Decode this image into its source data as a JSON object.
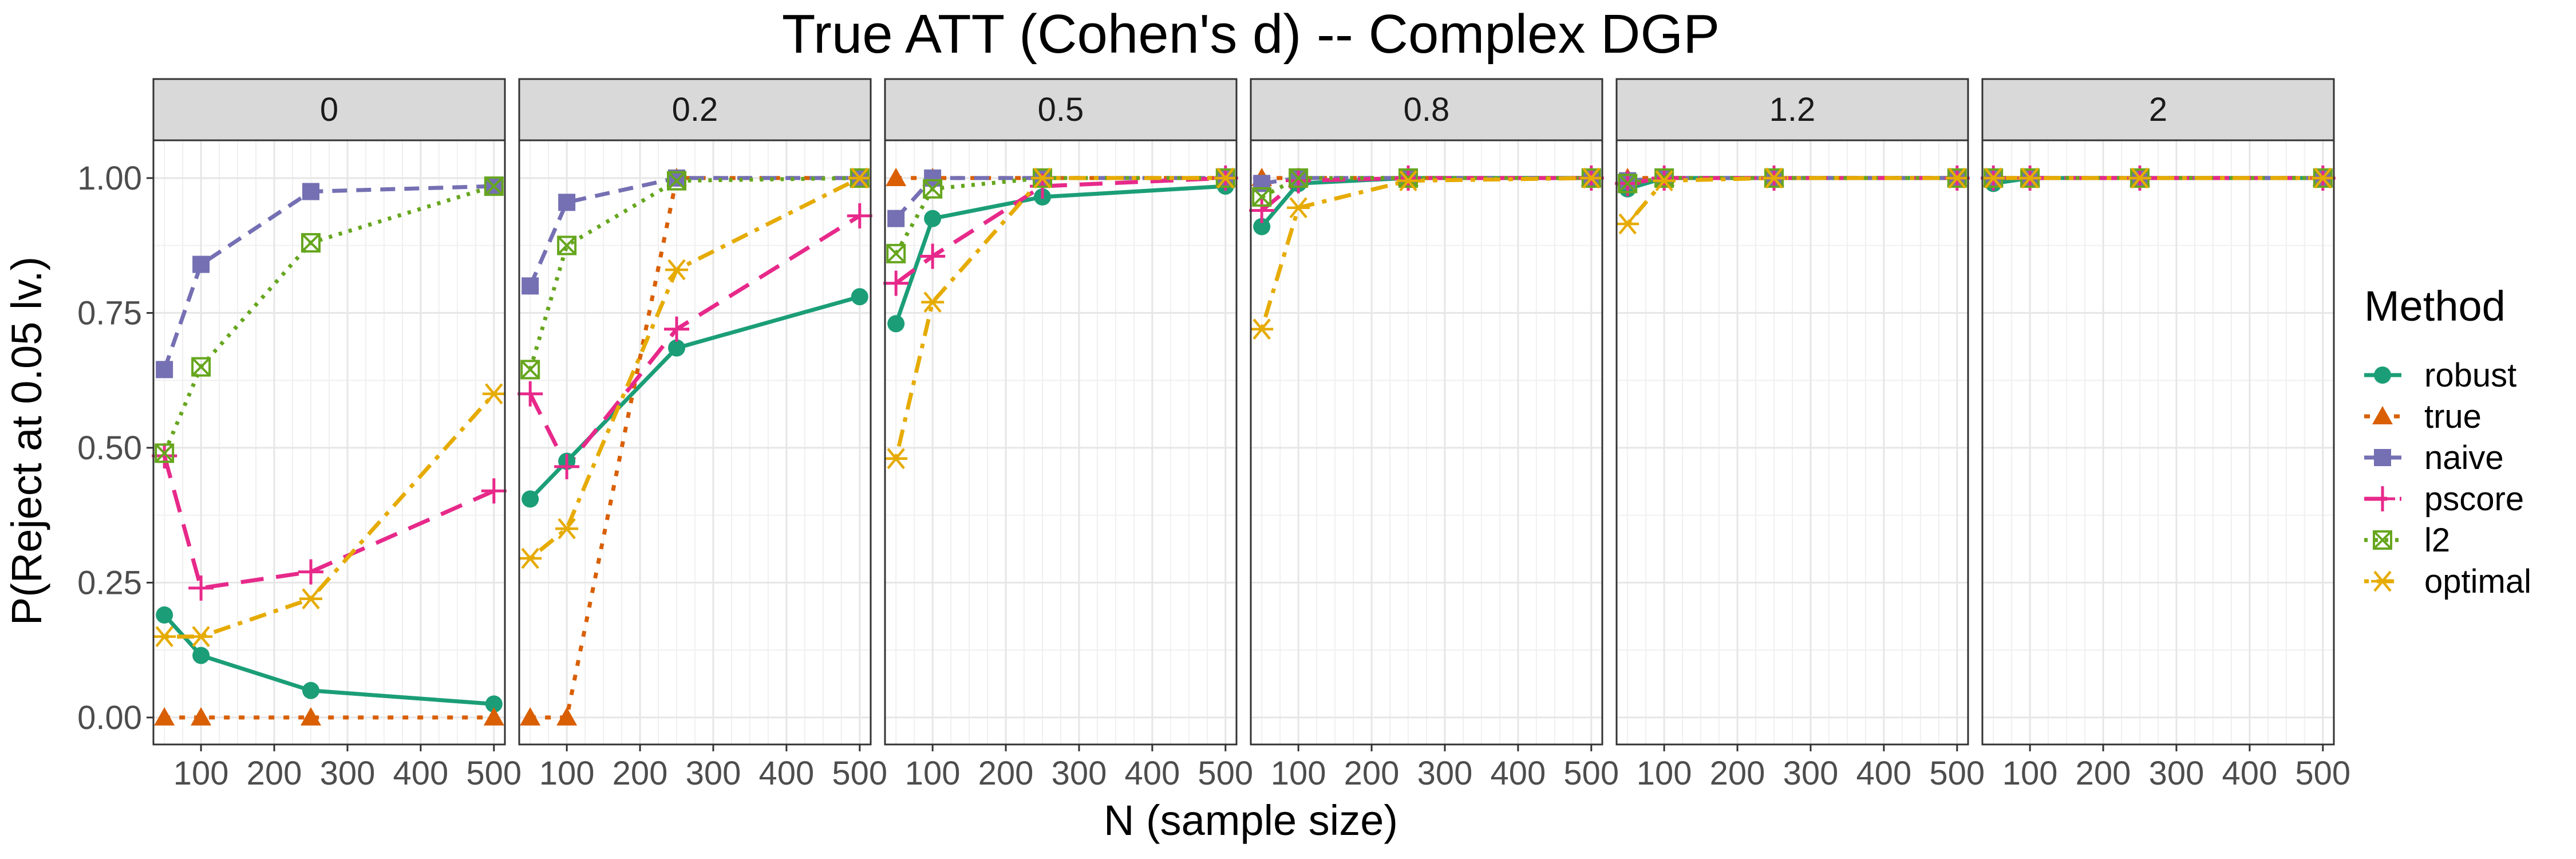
{
  "chart_data": {
    "type": "line",
    "title": "True ATT (Cohen's d) -- Complex DGP",
    "xlabel": "N (sample size)",
    "ylabel": "P(Reject at 0.05 lv.)",
    "xlim": [
      35,
      515
    ],
    "ylim": [
      -0.05,
      1.07
    ],
    "x_ticks": [
      100,
      200,
      300,
      400,
      500
    ],
    "y_ticks": [
      0,
      0.25,
      0.5,
      0.75,
      1
    ],
    "y_tick_labels": [
      "0.00",
      "0.25",
      "0.50",
      "0.75",
      "1.00"
    ],
    "x": [
      50,
      100,
      250,
      500
    ],
    "legend_title": "Method",
    "methods": [
      {
        "key": "robust",
        "label": "robust",
        "color": "#1b9e77",
        "dash": "solid",
        "marker": "circle"
      },
      {
        "key": "true",
        "label": "true",
        "color": "#d95f02",
        "dash": "dotted",
        "marker": "triangle"
      },
      {
        "key": "naive",
        "label": "naive",
        "color": "#7570b3",
        "dash": "dashed",
        "marker": "square"
      },
      {
        "key": "pscore",
        "label": "pscore",
        "color": "#e7298a",
        "dash": "longdash",
        "marker": "plus"
      },
      {
        "key": "l2",
        "label": "l2",
        "color": "#66a61e",
        "dash": "dotdense",
        "marker": "boxx"
      },
      {
        "key": "optimal",
        "label": "optimal",
        "color": "#e6ab02",
        "dash": "dotdash",
        "marker": "star"
      }
    ],
    "panels": [
      {
        "label": "0",
        "series": {
          "robust": [
            0.19,
            0.115,
            0.05,
            0.025
          ],
          "true": [
            0.0,
            0.0,
            0.0,
            0.0
          ],
          "naive": [
            0.645,
            0.84,
            0.975,
            0.985
          ],
          "pscore": [
            0.485,
            0.24,
            0.27,
            0.42
          ],
          "l2": [
            0.49,
            0.65,
            0.88,
            0.985
          ],
          "optimal": [
            0.15,
            0.15,
            0.22,
            0.6
          ]
        }
      },
      {
        "label": "0.2",
        "series": {
          "robust": [
            0.405,
            0.475,
            0.685,
            0.78
          ],
          "true": [
            0.0,
            0.0,
            1.0,
            1.0
          ],
          "naive": [
            0.8,
            0.955,
            1.0,
            1.0
          ],
          "pscore": [
            0.6,
            0.465,
            0.72,
            0.93
          ],
          "l2": [
            0.645,
            0.875,
            0.995,
            1.0
          ],
          "optimal": [
            0.295,
            0.35,
            0.83,
            1.0
          ]
        }
      },
      {
        "label": "0.5",
        "series": {
          "robust": [
            0.73,
            0.925,
            0.965,
            0.985
          ],
          "true": [
            1.0,
            1.0,
            1.0,
            1.0
          ],
          "naive": [
            0.925,
            1.0,
            1.0,
            1.0
          ],
          "pscore": [
            0.805,
            0.855,
            0.985,
            1.0
          ],
          "l2": [
            0.86,
            0.98,
            1.0,
            1.0
          ],
          "optimal": [
            0.48,
            0.77,
            1.0,
            1.0
          ]
        }
      },
      {
        "label": "0.8",
        "series": {
          "robust": [
            0.91,
            0.99,
            1.0,
            1.0
          ],
          "true": [
            1.0,
            1.0,
            1.0,
            1.0
          ],
          "naive": [
            0.99,
            1.0,
            1.0,
            1.0
          ],
          "pscore": [
            0.94,
            0.995,
            1.0,
            1.0
          ],
          "l2": [
            0.965,
            1.0,
            1.0,
            1.0
          ],
          "optimal": [
            0.72,
            0.945,
            0.995,
            1.0
          ]
        }
      },
      {
        "label": "1.2",
        "series": {
          "robust": [
            0.98,
            1.0,
            1.0,
            1.0
          ],
          "true": [
            1.0,
            1.0,
            1.0,
            1.0
          ],
          "naive": [
            0.995,
            1.0,
            1.0,
            1.0
          ],
          "pscore": [
            0.99,
            1.0,
            1.0,
            1.0
          ],
          "l2": [
            0.99,
            1.0,
            1.0,
            1.0
          ],
          "optimal": [
            0.915,
            0.995,
            1.0,
            1.0
          ]
        }
      },
      {
        "label": "2",
        "series": {
          "robust": [
            0.99,
            1.0,
            1.0,
            1.0
          ],
          "true": [
            1.0,
            1.0,
            1.0,
            1.0
          ],
          "naive": [
            1.0,
            1.0,
            1.0,
            1.0
          ],
          "pscore": [
            1.0,
            1.0,
            1.0,
            1.0
          ],
          "l2": [
            1.0,
            1.0,
            1.0,
            1.0
          ],
          "optimal": [
            1.0,
            1.0,
            1.0,
            1.0
          ]
        }
      }
    ]
  }
}
